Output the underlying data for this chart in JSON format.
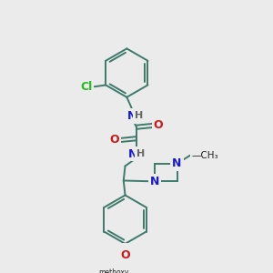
{
  "bg_color": "#ebebeb",
  "bond_color": "#3d7a6a",
  "atom_colors": {
    "N": "#1a1acc",
    "O": "#cc1a1a",
    "Cl": "#22bb22",
    "H": "#666666",
    "C": "#222222"
  },
  "figsize": [
    3.0,
    3.0
  ],
  "dpi": 100,
  "lw": 1.4
}
